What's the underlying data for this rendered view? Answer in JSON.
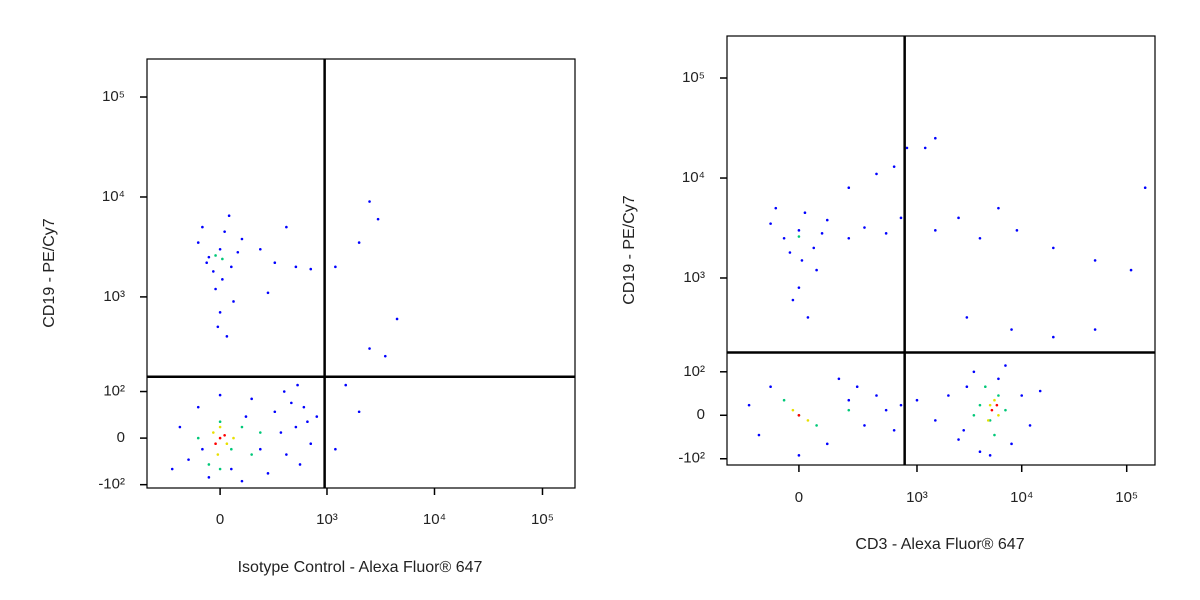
{
  "chart_data": [
    {
      "type": "scatter",
      "xlabel": "Isotype Control - Alexa Fluor® 647",
      "ylabel": "CD19 - PE/Cy7",
      "xscale": "biexponential",
      "yscale": "biexponential",
      "xlim": [
        -470,
        200000
      ],
      "ylim": [
        -110,
        240000
      ],
      "xticks": [
        0,
        {
          "value": 1000,
          "label": "10³"
        },
        {
          "value": 10000,
          "label": "10⁴"
        },
        {
          "value": 100000,
          "label": "10⁵"
        }
      ],
      "yticks": [
        {
          "value": -100,
          "label": "-10²"
        },
        0,
        {
          "value": 100,
          "label": "10²"
        },
        {
          "value": 1000,
          "label": "10³"
        },
        {
          "value": 10000,
          "label": "10⁴"
        },
        {
          "value": 100000,
          "label": "10⁵"
        }
      ],
      "gates": {
        "x": 950,
        "y": 150
      },
      "series": [
        {
          "color": "#0000ff",
          "x": [
            -150,
            -100,
            -50,
            50,
            120,
            200,
            300,
            400,
            500,
            600,
            700,
            800,
            -200,
            -250,
            150,
            250,
            350,
            450,
            550,
            650,
            100,
            0,
            -80,
            380,
            520,
            -50,
            0,
            50,
            -100,
            20,
            -30,
            80,
            -80,
            10,
            40,
            -20,
            60,
            0,
            -10,
            30,
            100,
            -60,
            300,
            500,
            700,
            200,
            400,
            250,
            1200,
            2000,
            2500,
            3000,
            4500,
            3500,
            2500,
            1500,
            2000,
            1200
          ],
          "y": [
            -40,
            60,
            -80,
            -60,
            40,
            -20,
            50,
            -30,
            20,
            60,
            -10,
            40,
            20,
            -60,
            80,
            -70,
            10,
            70,
            -50,
            30,
            -90,
            90,
            -20,
            100,
            120,
            2500,
            3000,
            2000,
            3500,
            4500,
            1800,
            2800,
            5000,
            1500,
            6500,
            1200,
            900,
            700,
            500,
            400,
            3800,
            2200,
            2200,
            2000,
            1900,
            3000,
            5000,
            1100,
            2000,
            3500,
            9000,
            6000,
            600,
            250,
            300,
            120,
            50,
            -20
          ]
        },
        {
          "color": "#00c878",
          "x": [
            -100,
            0,
            50,
            -50,
            100,
            150,
            -20,
            10,
            200,
            0
          ],
          "y": [
            0,
            30,
            -20,
            -50,
            20,
            -30,
            2600,
            2400,
            10,
            -60
          ]
        },
        {
          "color": "#e8e000",
          "x": [
            -30,
            30,
            0,
            -10,
            60
          ],
          "y": [
            10,
            -10,
            20,
            -30,
            0
          ]
        },
        {
          "color": "#ff0000",
          "x": [
            0,
            -20,
            20
          ],
          "y": [
            0,
            -10,
            5
          ]
        }
      ]
    },
    {
      "type": "scatter",
      "xlabel": "CD3 - Alexa Fluor® 647",
      "ylabel": "CD19 - PE/Cy7",
      "xscale": "biexponential",
      "yscale": "biexponential",
      "xlim": [
        -350,
        186000
      ],
      "ylim": [
        -120,
        263000
      ],
      "xticks": [
        0,
        {
          "value": 1000,
          "label": "10³"
        },
        {
          "value": 10000,
          "label": "10⁴"
        },
        {
          "value": 100000,
          "label": "10⁵"
        }
      ],
      "yticks": [
        {
          "value": -100,
          "label": "-10²"
        },
        0,
        {
          "value": 100,
          "label": "10²"
        },
        {
          "value": 1000,
          "label": "10³"
        },
        {
          "value": 10000,
          "label": "10⁴"
        },
        {
          "value": 100000,
          "label": "10⁵"
        }
      ],
      "gates": {
        "x": 760,
        "y": 170
      },
      "series": [
        {
          "color": "#0000ff",
          "x": [
            -150,
            -100,
            100,
            200,
            300,
            400,
            500,
            600,
            -200,
            150,
            0,
            250,
            700,
            1000,
            1500,
            2000,
            2500,
            3000,
            4000,
            6000,
            8000,
            10000,
            12000,
            15000,
            3500,
            7000,
            2800,
            5000,
            -50,
            0,
            50,
            -100,
            20,
            -30,
            80,
            -80,
            10,
            60,
            0,
            -20,
            30,
            100,
            200,
            300,
            500,
            700,
            1500,
            2500,
            4000,
            6000,
            9000,
            20000,
            50000,
            110000,
            150000,
            1200,
            1500,
            800,
            400,
            600,
            200,
            3000,
            8000,
            20000,
            50000
          ],
          "y": [
            -40,
            60,
            -60,
            30,
            -20,
            40,
            10,
            -30,
            20,
            80,
            -90,
            60,
            20,
            30,
            -10,
            40,
            -50,
            60,
            -80,
            80,
            -60,
            40,
            -20,
            50,
            100,
            120,
            -30,
            -90,
            2500,
            3000,
            2000,
            3500,
            4500,
            1800,
            2800,
            5000,
            1500,
            1200,
            800,
            600,
            400,
            3800,
            2500,
            3200,
            2800,
            4000,
            3000,
            4000,
            2500,
            5000,
            3000,
            2000,
            1500,
            1200,
            8000,
            20000,
            25000,
            20000,
            11000,
            13000,
            8000,
            400,
            300,
            250,
            300
          ]
        },
        {
          "color": "#00c878",
          "x": [
            0,
            -50,
            60,
            200,
            4000,
            5000,
            6000,
            4500,
            3500,
            7000,
            0,
            5500
          ],
          "y": [
            0,
            30,
            -20,
            10,
            20,
            -10,
            40,
            60,
            0,
            10,
            2600,
            -40
          ]
        },
        {
          "color": "#e8e000",
          "x": [
            -20,
            30,
            5000,
            6000,
            4800,
            5500
          ],
          "y": [
            10,
            -10,
            20,
            0,
            -10,
            30
          ]
        },
        {
          "color": "#ff0000",
          "x": [
            0,
            5200,
            5800
          ],
          "y": [
            0,
            10,
            20
          ]
        }
      ]
    }
  ]
}
